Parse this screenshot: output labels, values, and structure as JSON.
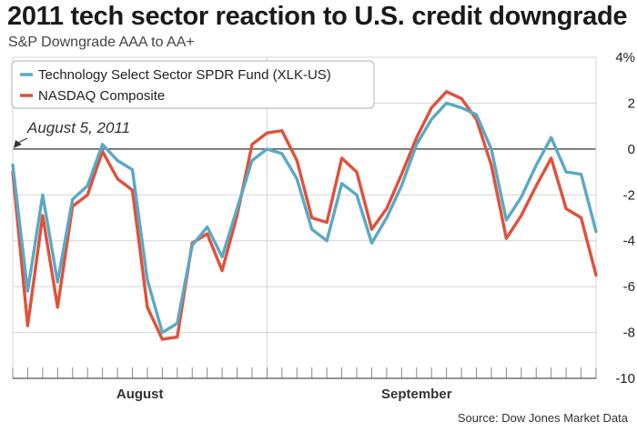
{
  "title": "2011 tech sector reaction to U.S. credit downgrade",
  "subtitle": "S&P Downgrade AAA to AA+",
  "source": "Source: Dow Jones Market Data",
  "chart_data": {
    "type": "line",
    "title": "2011 tech sector reaction to U.S. credit downgrade",
    "subtitle": "S&P Downgrade AAA to AA+",
    "ylim": [
      -10,
      4
    ],
    "yticks": [
      4,
      2,
      0,
      -2,
      -4,
      -6,
      -8,
      -10
    ],
    "ytick_labels": [
      "4%",
      "2",
      "0",
      "-2",
      "-4",
      "-6",
      "-8",
      "-10"
    ],
    "y_axis_position": "right",
    "month_labels": [
      {
        "label": "August",
        "index": 8.5
      },
      {
        "label": "September",
        "index": 27
      }
    ],
    "month_divider_index": 17,
    "grid": true,
    "legend_position": "top-left",
    "annotation": {
      "text": "August 5, 2011",
      "index": 0,
      "y": 0
    },
    "colors": {
      "xlk": "#5aa9c6",
      "nasdaq": "#e0513a",
      "grid": "#d4d4d4",
      "zero": "#333333"
    },
    "series": [
      {
        "name": "Technology Select Sector SPDR Fund (XLK-US)",
        "values": [
          -0.7,
          -6.2,
          -2.0,
          -5.8,
          -2.2,
          -1.6,
          0.2,
          -0.5,
          -0.9,
          -5.7,
          -8.0,
          -7.6,
          -4.2,
          -3.4,
          -4.7,
          -2.6,
          -0.5,
          0.0,
          -0.2,
          -1.3,
          -3.5,
          -4.0,
          -1.5,
          -2.0,
          -4.1,
          -3.0,
          -1.6,
          0.2,
          1.3,
          2.0,
          1.8,
          1.5,
          0.0,
          -3.1,
          -2.1,
          -0.7,
          0.5,
          -1.0,
          -1.1,
          -3.6
        ]
      },
      {
        "name": "NASDAQ Composite",
        "values": [
          -1.0,
          -7.7,
          -2.9,
          -6.9,
          -2.5,
          -2.0,
          -0.1,
          -1.3,
          -1.8,
          -6.9,
          -8.3,
          -8.2,
          -4.1,
          -3.7,
          -5.3,
          -2.9,
          0.2,
          0.7,
          0.8,
          -0.5,
          -3.0,
          -3.2,
          -0.4,
          -1.0,
          -3.5,
          -2.6,
          -1.1,
          0.5,
          1.8,
          2.5,
          2.2,
          1.3,
          -0.7,
          -3.9,
          -2.9,
          -1.6,
          -0.4,
          -2.6,
          -3.0,
          -5.5
        ]
      }
    ]
  }
}
